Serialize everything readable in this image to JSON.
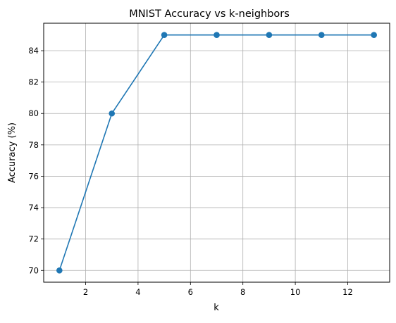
{
  "chart_data": {
    "type": "line",
    "title": "MNIST Accuracy vs k-neighbors",
    "xlabel": "k",
    "ylabel": "Accuracy (%)",
    "x": [
      1,
      3,
      5,
      7,
      9,
      11,
      13
    ],
    "series": [
      {
        "values": [
          70,
          80,
          85,
          85,
          85,
          85,
          85
        ],
        "color": "#1f77b4",
        "marker": "circle"
      }
    ],
    "xlim": [
      0.4,
      13.6
    ],
    "ylim": [
      69.25,
      85.75
    ],
    "xticks": [
      2,
      4,
      6,
      8,
      10,
      12
    ],
    "yticks": [
      70,
      72,
      74,
      76,
      78,
      80,
      82,
      84
    ],
    "grid": true,
    "grid_color": "#b0b0b0"
  }
}
